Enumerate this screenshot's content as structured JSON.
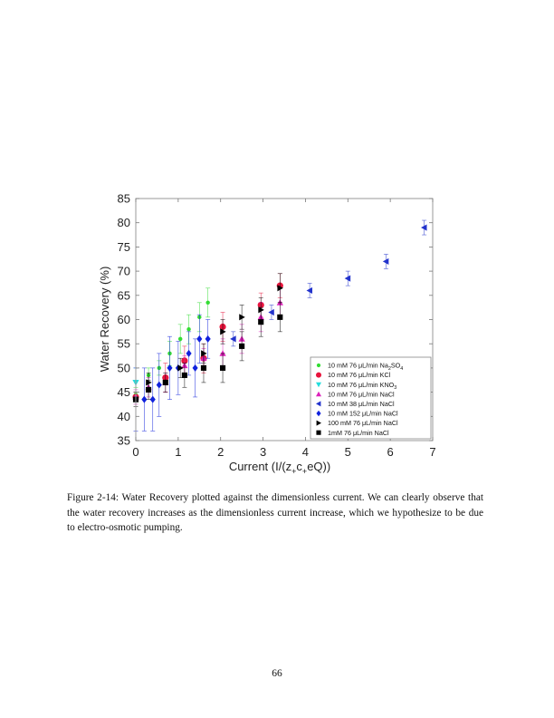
{
  "figure": {
    "caption": "Figure 2-14: Water Recovery plotted against the dimensionless current. We can clearly observe that the water recovery increases as the dimensionless current increase, which we hypothesize to be due to electro-osmotic pumping."
  },
  "page_number": "66",
  "chart_data": {
    "type": "scatter",
    "xlabel": "Current (I/(z",
    "xlabel_sub1": "+",
    "xlabel_mid": "c",
    "xlabel_sub2": "+",
    "xlabel_end": "eQ))",
    "ylabel": "Water Recovery (%)",
    "xlim": [
      0,
      7
    ],
    "ylim": [
      35,
      85
    ],
    "xticks": [
      0,
      1,
      2,
      3,
      4,
      5,
      6,
      7
    ],
    "yticks": [
      35,
      40,
      45,
      50,
      55,
      60,
      65,
      70,
      75,
      80,
      85
    ],
    "grid": false,
    "legend_position": "bottom-right",
    "series": [
      {
        "name": "10 mM 76 μL/min Na2SO4",
        "name_main": "10 mM 76 μL/min Na",
        "name_sub": "2",
        "name_after": "SO",
        "name_sub2": "4",
        "marker": "circle-small",
        "color": "#33dd33",
        "points": [
          {
            "x": 0.0,
            "y": 44.5,
            "err": 1.5
          },
          {
            "x": 0.3,
            "y": 48.5,
            "err": 1.5
          },
          {
            "x": 0.55,
            "y": 50.0,
            "err": 1.5
          },
          {
            "x": 0.8,
            "y": 53.0,
            "err": 2.5
          },
          {
            "x": 1.05,
            "y": 56.0,
            "err": 3.0
          },
          {
            "x": 1.25,
            "y": 58.0,
            "err": 3.0
          },
          {
            "x": 1.5,
            "y": 60.5,
            "err": 3.0
          },
          {
            "x": 1.7,
            "y": 63.5,
            "err": 3.0
          }
        ]
      },
      {
        "name": "10 mM 76 μL/min KCl",
        "marker": "circle",
        "color": "#e8143c",
        "points": [
          {
            "x": 0.0,
            "y": 44.0,
            "err": 1.0
          },
          {
            "x": 0.7,
            "y": 48.0,
            "err": 3.0
          },
          {
            "x": 1.15,
            "y": 51.5,
            "err": 3.0
          },
          {
            "x": 1.6,
            "y": 52.0,
            "err": 3.0
          },
          {
            "x": 2.05,
            "y": 58.5,
            "err": 3.0
          },
          {
            "x": 2.95,
            "y": 63.0,
            "err": 2.5
          },
          {
            "x": 3.4,
            "y": 67.0,
            "err": 2.5
          }
        ]
      },
      {
        "name": "10 mM 76 μL/min KNO3",
        "name_main": "10 mM 76 μL/min KNO",
        "name_sub": "3",
        "marker": "triangle-down",
        "color": "#22dddd",
        "points": [
          {
            "x": 0.0,
            "y": 47.0,
            "err": 3.0
          }
        ]
      },
      {
        "name": "10 mM 76 μL/min NaCl",
        "marker": "triangle-up",
        "color": "#dd22bb",
        "points": [
          {
            "x": 0.0,
            "y": 44.0,
            "err": 1.5
          },
          {
            "x": 0.3,
            "y": 46.0,
            "err": 2.0
          },
          {
            "x": 0.7,
            "y": 47.0,
            "err": 2.0
          },
          {
            "x": 1.15,
            "y": 50.5,
            "err": 2.0
          },
          {
            "x": 1.6,
            "y": 52.0,
            "err": 2.0
          },
          {
            "x": 2.05,
            "y": 53.0,
            "err": 3.0
          },
          {
            "x": 2.5,
            "y": 56.0,
            "err": 3.0
          },
          {
            "x": 2.95,
            "y": 60.5,
            "err": 3.0
          },
          {
            "x": 3.4,
            "y": 63.5,
            "err": 3.0
          }
        ]
      },
      {
        "name": "10 mM 38 μL/min NaCl",
        "marker": "triangle-left",
        "color": "#2233cc",
        "points": [
          {
            "x": 2.3,
            "y": 56.0,
            "err": 1.5
          },
          {
            "x": 3.2,
            "y": 61.5,
            "err": 1.5
          },
          {
            "x": 4.1,
            "y": 66.0,
            "err": 1.5
          },
          {
            "x": 5.0,
            "y": 68.5,
            "err": 1.5
          },
          {
            "x": 5.9,
            "y": 72.0,
            "err": 1.5
          },
          {
            "x": 6.8,
            "y": 79.0,
            "err": 1.5
          }
        ]
      },
      {
        "name": "10 mM 152 μL/min NaCl",
        "marker": "diamond",
        "color": "#1122dd",
        "points": [
          {
            "x": 0.0,
            "y": 43.5,
            "err": 6.5
          },
          {
            "x": 0.2,
            "y": 43.5,
            "err": 6.5
          },
          {
            "x": 0.4,
            "y": 43.5,
            "err": 6.5
          },
          {
            "x": 0.55,
            "y": 46.5,
            "err": 6.5
          },
          {
            "x": 0.8,
            "y": 50.0,
            "err": 6.5
          },
          {
            "x": 1.0,
            "y": 50.0,
            "err": 5.5
          },
          {
            "x": 1.25,
            "y": 53.0,
            "err": 4.5
          },
          {
            "x": 1.4,
            "y": 50.0,
            "err": 6.0
          },
          {
            "x": 1.5,
            "y": 56.0,
            "err": 5.0
          },
          {
            "x": 1.7,
            "y": 56.0,
            "err": 4.0
          }
        ]
      },
      {
        "name": "100 mM 76 μL/min NaCl",
        "marker": "triangle-right",
        "color": "#000000",
        "points": [
          {
            "x": 0.3,
            "y": 47.0,
            "err": 2.0
          },
          {
            "x": 1.05,
            "y": 50.0,
            "err": 2.0
          },
          {
            "x": 1.6,
            "y": 53.0,
            "err": 2.0
          },
          {
            "x": 2.05,
            "y": 57.5,
            "err": 2.5
          },
          {
            "x": 2.5,
            "y": 60.5,
            "err": 2.5
          },
          {
            "x": 2.95,
            "y": 62.0,
            "err": 2.5
          },
          {
            "x": 3.4,
            "y": 66.5,
            "err": 3.0
          }
        ]
      },
      {
        "name": "1mM 76 μL/min NaCl",
        "marker": "square",
        "color": "#000000",
        "points": [
          {
            "x": 0.0,
            "y": 43.5,
            "err": 1.5
          },
          {
            "x": 0.3,
            "y": 45.5,
            "err": 2.0
          },
          {
            "x": 0.7,
            "y": 47.0,
            "err": 2.0
          },
          {
            "x": 1.15,
            "y": 48.5,
            "err": 2.5
          },
          {
            "x": 1.6,
            "y": 50.0,
            "err": 3.0
          },
          {
            "x": 2.05,
            "y": 50.0,
            "err": 3.0
          },
          {
            "x": 2.5,
            "y": 54.5,
            "err": 3.0
          },
          {
            "x": 2.95,
            "y": 59.5,
            "err": 3.0
          },
          {
            "x": 3.4,
            "y": 60.5,
            "err": 3.0
          }
        ]
      }
    ]
  }
}
